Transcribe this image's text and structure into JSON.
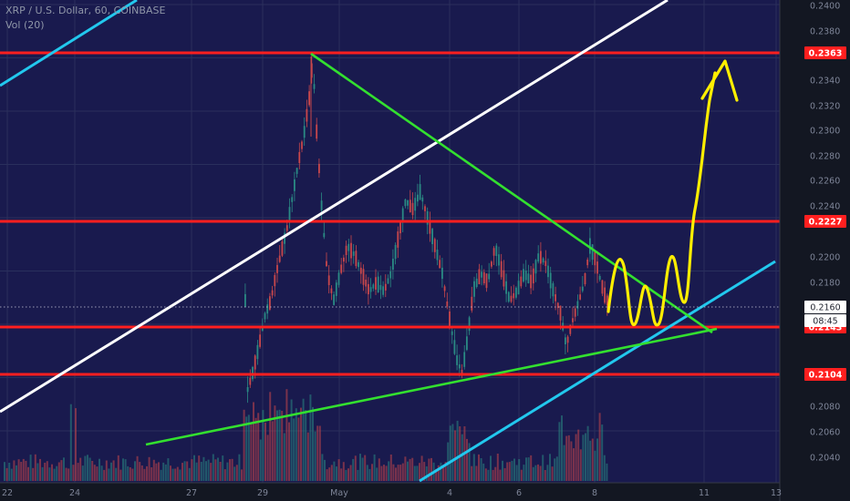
{
  "header": {
    "symbol_line": "XRP / U.S. Dollar, 60, COINBASE",
    "volume_line": "Vol (20)"
  },
  "colors": {
    "background": "#131722",
    "plot_background": "#191a4e",
    "grid": "#2a2f5c",
    "resistance_red": "#ff1f1f",
    "trend_green": "#33e02f",
    "channel_white": "#ffffff",
    "channel_cyan": "#22c8ee",
    "projection_yellow": "#ffee00",
    "candle_up": "#2a8a84",
    "candle_down": "#c8474b"
  },
  "chart_data": {
    "type": "candlestick",
    "title": "XRP / U.S. Dollar, 60, COINBASE",
    "indicator": "Vol (20)",
    "x_tick_labels": [
      "22",
      "24",
      "27",
      "29",
      "May",
      "4",
      "6",
      "8",
      "11",
      "13"
    ],
    "y_ticks": [
      "0.2400",
      "0.2380",
      "0.2363",
      "0.2340",
      "0.2320",
      "0.2300",
      "0.2280",
      "0.2260",
      "0.2240",
      "0.2227",
      "0.2200",
      "0.2180",
      "0.2160",
      "0.2143",
      "0.2104",
      "0.2080",
      "0.2060",
      "0.2040"
    ],
    "ylim": [
      0.2025,
      0.2405
    ],
    "current_price": "0.2160",
    "countdown": "08:45",
    "horizontal_levels": [
      {
        "label": "0.2363",
        "value": 0.2363
      },
      {
        "label": "0.2227",
        "value": 0.2227
      },
      {
        "label": "0.2143",
        "value": 0.2143
      },
      {
        "label": "0.2104",
        "value": 0.2104
      }
    ],
    "price_path": [
      {
        "t": 0,
        "p": 0.208
      },
      {
        "t": 0.3,
        "p": 0.2095
      },
      {
        "t": 0.6,
        "p": 0.215
      },
      {
        "t": 0.9,
        "p": 0.217
      },
      {
        "t": 1.1,
        "p": 0.22
      },
      {
        "t": 1.3,
        "p": 0.223
      },
      {
        "t": 1.5,
        "p": 0.228
      },
      {
        "t": 1.7,
        "p": 0.226
      },
      {
        "t": 1.9,
        "p": 0.23
      },
      {
        "t": 2.0,
        "p": 0.234
      },
      {
        "t": 2.08,
        "p": 0.2355
      },
      {
        "t": 2.2,
        "p": 0.227
      },
      {
        "t": 2.4,
        "p": 0.22
      },
      {
        "t": 2.6,
        "p": 0.215
      },
      {
        "t": 2.8,
        "p": 0.213
      },
      {
        "t": 3.0,
        "p": 0.217
      },
      {
        "t": 3.2,
        "p": 0.22
      },
      {
        "t": 3.5,
        "p": 0.218
      },
      {
        "t": 3.8,
        "p": 0.217
      },
      {
        "t": 4.1,
        "p": 0.219
      },
      {
        "t": 4.5,
        "p": 0.222
      },
      {
        "t": 4.8,
        "p": 0.225
      },
      {
        "t": 5.0,
        "p": 0.224
      },
      {
        "t": 5.3,
        "p": 0.22
      },
      {
        "t": 5.6,
        "p": 0.215
      },
      {
        "t": 5.8,
        "p": 0.211
      },
      {
        "t": 6.0,
        "p": 0.213
      },
      {
        "t": 6.3,
        "p": 0.218
      },
      {
        "t": 6.6,
        "p": 0.22
      },
      {
        "t": 6.9,
        "p": 0.217
      },
      {
        "t": 7.2,
        "p": 0.218
      },
      {
        "t": 7.5,
        "p": 0.216
      },
      {
        "t": 7.8,
        "p": 0.22
      },
      {
        "t": 8.1,
        "p": 0.221
      },
      {
        "t": 8.4,
        "p": 0.217
      },
      {
        "t": 8.7,
        "p": 0.213
      },
      {
        "t": 8.9,
        "p": 0.215
      },
      {
        "t": 9.1,
        "p": 0.22
      },
      {
        "t": 9.3,
        "p": 0.218
      },
      {
        "t": 9.45,
        "p": 0.216
      }
    ],
    "overlays": {
      "red_level_lines": 4,
      "green_descending_trendline": [
        [
          2.08,
          0.2363
        ],
        [
          11.4,
          0.2143
        ]
      ],
      "green_ascending_trendline": [
        [
          0.75,
          0.205
        ],
        [
          11.4,
          0.2143
        ]
      ],
      "white_channel_line": [
        [
          -2.0,
          0.2088
        ],
        [
          8.2,
          0.2405
        ]
      ],
      "cyan_channel_lower": [
        [
          5.6,
          0.2025
        ],
        [
          12.4,
          0.2196
        ]
      ],
      "cyan_channel_upper": [
        [
          -2.5,
          0.235
        ],
        [
          -1.6,
          0.2405
        ]
      ],
      "yellow_projection": "oscillation near 0.2160 then breakout toward 0.2363"
    }
  }
}
